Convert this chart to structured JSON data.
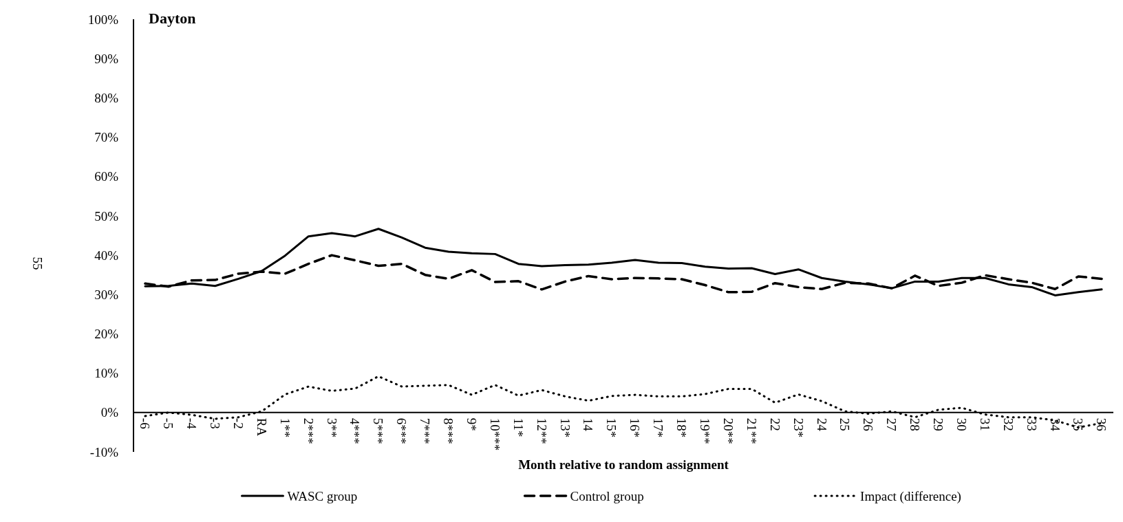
{
  "chart_data": {
    "type": "line",
    "title": "Dayton",
    "xlabel": "Month relative to random assignment",
    "categories": [
      "-6",
      "-5",
      "-4",
      "-3",
      "-2",
      "RA",
      "1**",
      "2***",
      "3**",
      "4***",
      "5***",
      "6***",
      "7***",
      "8***",
      "9*",
      "10***",
      "11*",
      "12**",
      "13*",
      "14",
      "15*",
      "16*",
      "17*",
      "18*",
      "19**",
      "20**",
      "21**",
      "22",
      "23*",
      "24",
      "25",
      "26",
      "27",
      "28",
      "29",
      "30",
      "31",
      "32",
      "33",
      "34",
      "35",
      "36"
    ],
    "series": [
      {
        "name": "WASC group",
        "color": "#000000",
        "line_style": "solid",
        "values": [
          32.1,
          32.2,
          32.8,
          32.2,
          34.0,
          36.0,
          39.9,
          44.8,
          45.6,
          44.8,
          46.7,
          44.5,
          41.9,
          40.9,
          40.5,
          40.3,
          37.8,
          37.2,
          37.5,
          37.6,
          38.1,
          38.8,
          38.1,
          38.0,
          37.1,
          36.6,
          36.7,
          35.2,
          36.4,
          34.2,
          33.3,
          32.6,
          31.6,
          33.3,
          33.3,
          34.2,
          34.2,
          32.6,
          31.9,
          29.8,
          30.6,
          31.3
        ]
      },
      {
        "name": "Control group",
        "color": "#000000",
        "line_style": "dashed",
        "values": [
          32.8,
          32.0,
          33.6,
          33.7,
          35.3,
          35.8,
          35.3,
          37.8,
          40.0,
          38.7,
          37.3,
          37.8,
          35.0,
          34.0,
          36.2,
          33.2,
          33.4,
          31.3,
          33.3,
          34.7,
          33.9,
          34.2,
          34.1,
          33.9,
          32.4,
          30.6,
          30.7,
          32.9,
          31.9,
          31.4,
          33.0,
          32.8,
          31.6,
          34.8,
          32.2,
          33.0,
          34.9,
          33.9,
          33.0,
          31.4,
          34.6,
          34.0
        ]
      },
      {
        "name": "Impact (difference)",
        "color": "#000000",
        "line_style": "dotted",
        "values": [
          -0.9,
          0.0,
          -0.6,
          -1.6,
          -1.2,
          0.3,
          4.6,
          6.6,
          5.5,
          6.1,
          9.2,
          6.6,
          6.8,
          7.0,
          4.5,
          7.0,
          4.3,
          5.7,
          4.1,
          3.0,
          4.2,
          4.5,
          4.1,
          4.1,
          4.7,
          6.0,
          6.0,
          2.5,
          4.6,
          2.9,
          0.3,
          -0.3,
          0.3,
          -1.2,
          0.7,
          1.2,
          -0.5,
          -1.2,
          -1.2,
          -2.0,
          -3.8,
          -2.7
        ]
      }
    ],
    "ylim": [
      -10,
      100
    ],
    "yticks": [
      {
        "value": -10,
        "label": "-10%"
      },
      {
        "value": 0,
        "label": "0%"
      },
      {
        "value": 10,
        "label": "10%"
      },
      {
        "value": 20,
        "label": "20%"
      },
      {
        "value": 30,
        "label": "30%"
      },
      {
        "value": 40,
        "label": "40%"
      },
      {
        "value": 50,
        "label": "50%"
      },
      {
        "value": 60,
        "label": "60%"
      },
      {
        "value": 70,
        "label": "70%"
      },
      {
        "value": 80,
        "label": "80%"
      },
      {
        "value": 90,
        "label": "90%"
      },
      {
        "value": 100,
        "label": "100%"
      }
    ],
    "grid": false,
    "legend": "bottom",
    "marker": "none",
    "annotations": [
      "55"
    ]
  }
}
